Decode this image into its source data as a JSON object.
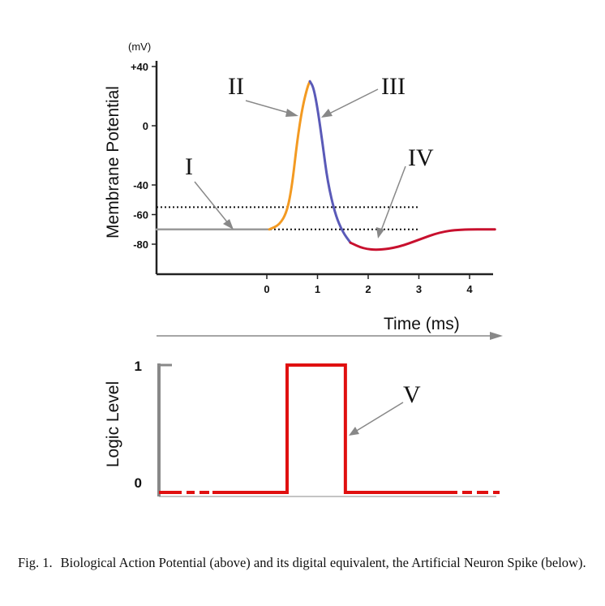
{
  "chart_data": [
    {
      "type": "line",
      "title": "Biological Action Potential",
      "xlabel": "Time (ms)",
      "ylabel": "Membrane Potential",
      "y_unit": "(mV)",
      "xlim": [
        -2.2,
        4.5
      ],
      "ylim": [
        -100,
        40
      ],
      "x_ticks": [
        0,
        1,
        2,
        3,
        4
      ],
      "x_tick_labels": [
        "0",
        "1",
        "2",
        "3",
        "4"
      ],
      "y_ticks": [
        40,
        0,
        -40,
        -60,
        -80
      ],
      "y_tick_labels": [
        "+40",
        "0",
        "-40",
        "-60",
        "-80"
      ],
      "reference_lines": [
        {
          "name": "threshold",
          "y": -55,
          "x_range": [
            -2.2,
            3.0
          ],
          "style": "dotted"
        },
        {
          "name": "resting",
          "y": -70,
          "x_range": [
            -2.2,
            3.0
          ],
          "style": "dotted"
        }
      ],
      "series": [
        {
          "name": "resting",
          "color": "#9a9a9a",
          "x": [
            -2.2,
            0.05
          ],
          "y": [
            -70,
            -70
          ]
        },
        {
          "name": "depolarization",
          "color": "#f39a22",
          "x": [
            0.05,
            0.25,
            0.4,
            0.5,
            0.6,
            0.7,
            0.8,
            0.85
          ],
          "y": [
            -70,
            -67,
            -58,
            -40,
            -10,
            12,
            26,
            30
          ]
        },
        {
          "name": "repolarization",
          "color": "#5a5ab8",
          "x": [
            0.85,
            0.92,
            1.0,
            1.1,
            1.2,
            1.35,
            1.5,
            1.65
          ],
          "y": [
            30,
            26,
            12,
            -12,
            -38,
            -60,
            -72,
            -79
          ]
        },
        {
          "name": "hyperpolarization",
          "color": "#c8102e",
          "x": [
            1.65,
            1.9,
            2.2,
            2.6,
            3.0,
            3.4,
            3.8,
            4.5
          ],
          "y": [
            -79,
            -83,
            -84,
            -82,
            -77,
            -72,
            -70,
            -70
          ]
        }
      ],
      "annotations": [
        "I",
        "II",
        "III",
        "IV"
      ]
    },
    {
      "type": "line",
      "title": "Artificial Neuron Spike",
      "xlabel": "",
      "ylabel": "Logic Level",
      "ylim": [
        0,
        1
      ],
      "y_ticks": [
        1,
        0
      ],
      "y_tick_labels": [
        "1",
        "0"
      ],
      "series": [
        {
          "name": "spike",
          "color": "#e01010",
          "x": [
            -2.5,
            0.4,
            0.4,
            1.55,
            1.55,
            4.6
          ],
          "y": [
            0,
            0,
            1,
            1,
            0,
            0
          ]
        }
      ],
      "annotations": [
        "V"
      ]
    }
  ],
  "annotations": {
    "I": "I",
    "II": "II",
    "III": "III",
    "IV": "IV",
    "V": "V"
  },
  "caption": {
    "label": "Fig. 1.",
    "text": "Biological Action Potential (above) and its digital equivalent, the Artificial Neuron Spike (below)."
  },
  "colors": {
    "depolarization": "#f39a22",
    "repolarization": "#5a5ab8",
    "hyperpolarization": "#c8102e",
    "digital": "#e01010",
    "axis": "#888888"
  }
}
